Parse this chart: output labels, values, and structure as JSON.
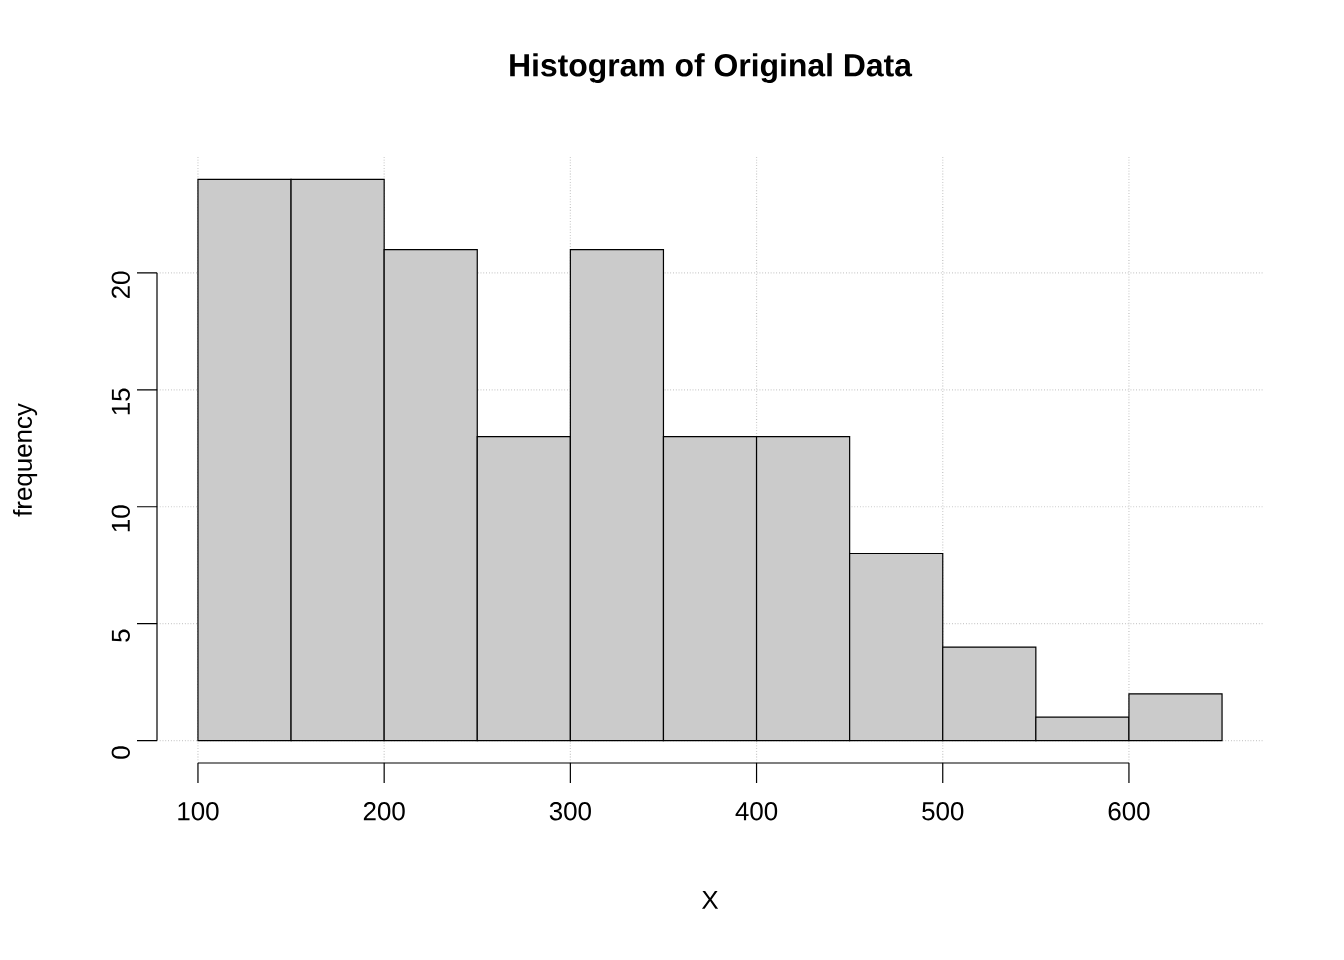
{
  "chart_data": {
    "type": "histogram",
    "title": "Histogram of Original Data",
    "xlabel": "X",
    "ylabel": "frequency",
    "bins": [
      100,
      150,
      200,
      250,
      300,
      350,
      400,
      450,
      500,
      550,
      600,
      650
    ],
    "values": [
      24,
      24,
      21,
      13,
      21,
      13,
      13,
      8,
      4,
      1,
      2
    ],
    "color": "#cbcbcb",
    "xlim": [
      78,
      672
    ],
    "ylim": [
      -0.96,
      24.96
    ],
    "xticks": [
      100,
      200,
      300,
      400,
      500,
      600
    ],
    "yticks": [
      0,
      5,
      10,
      15,
      20
    ],
    "grid": true
  }
}
